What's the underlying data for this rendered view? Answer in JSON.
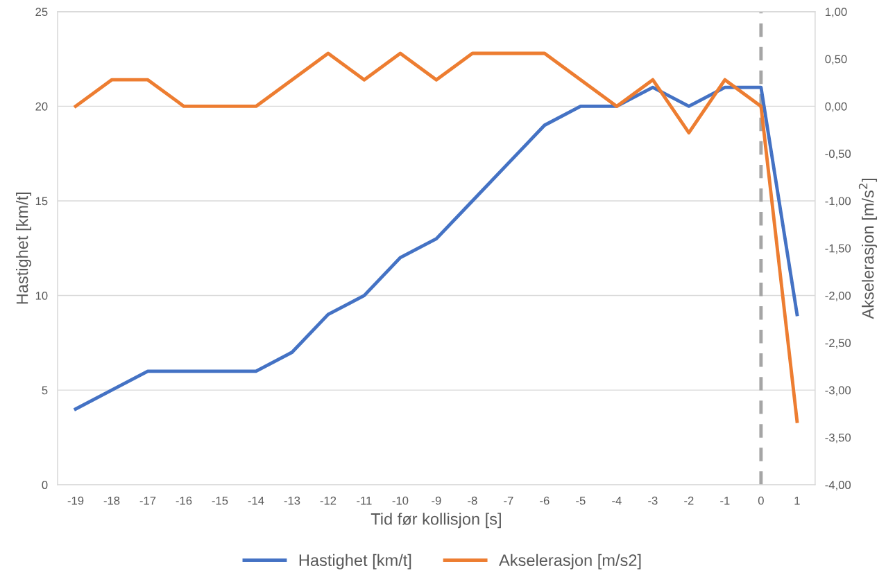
{
  "chart_data": {
    "type": "line",
    "xlabel": "Tid før kollisjon [s]",
    "ylabel": "Hastighet [km/t]",
    "y2label": "Akselerasjon [m/s$^{2}$]",
    "categories": [
      "-19",
      "-18",
      "-17",
      "-16",
      "-15",
      "-14",
      "-13",
      "-12",
      "-11",
      "-10",
      "-9",
      "-8",
      "-7",
      "-6",
      "-5",
      "-4",
      "-3",
      "-2",
      "-1",
      "0",
      "1"
    ],
    "series": [
      {
        "name": "Hastighet [km/t]",
        "color": "#4472c4",
        "values": [
          4,
          5,
          6,
          6,
          6,
          6,
          7,
          9,
          10,
          12,
          13,
          15,
          17,
          19,
          20,
          20,
          21,
          20,
          21,
          21,
          9
        ]
      },
      {
        "name": "Akselerasjon [m/s2]",
        "color": "#ed7d31",
        "axis": "y2",
        "values": [
          0,
          0.28,
          0.28,
          0,
          0,
          0,
          0.28,
          0.56,
          0.28,
          0.56,
          0.28,
          0.56,
          0.56,
          0.56,
          0.28,
          0,
          0.28,
          -0.28,
          0.28,
          0,
          -3.33
        ]
      }
    ],
    "ylim": [
      0,
      25
    ],
    "yticks": [
      0,
      5,
      10,
      15,
      20,
      25
    ],
    "y2lim": [
      -4,
      1
    ],
    "y2ticks": [
      {
        "value": -4,
        "label": "-4,00"
      },
      {
        "value": -3.5,
        "label": "-3,50"
      },
      {
        "value": -3,
        "label": "-3,00"
      },
      {
        "value": -2.5,
        "label": "-2,50"
      },
      {
        "value": -2,
        "label": "-2,00"
      },
      {
        "value": -1.5,
        "label": "-1,50"
      },
      {
        "value": -1,
        "label": "-1,00"
      },
      {
        "value": -0.5,
        "label": "-0,50"
      },
      {
        "value": 0,
        "label": "0,00"
      },
      {
        "value": 0.5,
        "label": "0,50"
      },
      {
        "value": 1,
        "label": "1,00"
      }
    ],
    "ref_lines": [
      {
        "axis": "x",
        "value": "0",
        "color": "#a5a5a5",
        "line_style": "dashed"
      }
    ],
    "grid": "y",
    "legend": "bottom",
    "marker": "none",
    "line_style": "solid"
  }
}
